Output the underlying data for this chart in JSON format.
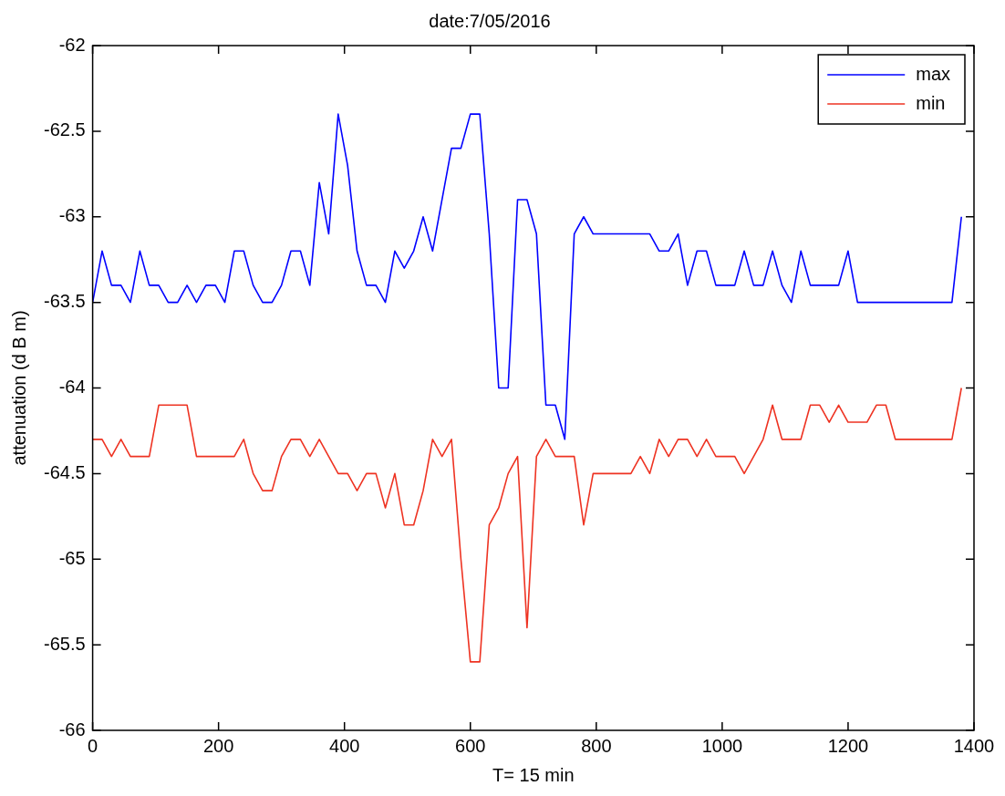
{
  "chart_data": {
    "type": "line",
    "title": "date:7/05/2016",
    "xlabel": "T= 15 min",
    "ylabel": "attenuation (d B m)",
    "x": [
      0,
      15,
      30,
      45,
      60,
      75,
      90,
      105,
      120,
      135,
      150,
      165,
      180,
      195,
      210,
      225,
      240,
      255,
      270,
      285,
      300,
      315,
      330,
      345,
      360,
      375,
      390,
      405,
      420,
      435,
      450,
      465,
      480,
      495,
      510,
      525,
      540,
      555,
      570,
      585,
      600,
      615,
      630,
      645,
      660,
      675,
      690,
      705,
      720,
      735,
      750,
      765,
      780,
      795,
      810,
      825,
      840,
      855,
      870,
      885,
      900,
      915,
      930,
      945,
      960,
      975,
      990,
      1005,
      1020,
      1035,
      1050,
      1065,
      1080,
      1095,
      1110,
      1125,
      1140,
      1155,
      1170,
      1185,
      1200,
      1215,
      1230,
      1245,
      1260,
      1275,
      1290,
      1305,
      1320,
      1335,
      1350,
      1365,
      1380
    ],
    "series": [
      {
        "name": "max",
        "color": "#0000ff",
        "values": [
          -63.5,
          -63.2,
          -63.4,
          -63.4,
          -63.5,
          -63.2,
          -63.4,
          -63.4,
          -63.5,
          -63.5,
          -63.4,
          -63.5,
          -63.4,
          -63.4,
          -63.5,
          -63.2,
          -63.2,
          -63.4,
          -63.5,
          -63.5,
          -63.4,
          -63.2,
          -63.2,
          -63.4,
          -62.8,
          -63.1,
          -62.4,
          -62.7,
          -63.2,
          -63.4,
          -63.4,
          -63.5,
          -63.2,
          -63.3,
          -63.2,
          -63.0,
          -63.2,
          -62.9,
          -62.6,
          -62.6,
          -62.4,
          -62.4,
          -63.1,
          -64.0,
          -64.0,
          -62.9,
          -62.9,
          -63.1,
          -64.1,
          -64.1,
          -64.3,
          -63.1,
          -63.0,
          -63.1,
          -63.1,
          -63.1,
          -63.1,
          -63.1,
          -63.1,
          -63.1,
          -63.2,
          -63.2,
          -63.1,
          -63.4,
          -63.2,
          -63.2,
          -63.4,
          -63.4,
          -63.4,
          -63.2,
          -63.4,
          -63.4,
          -63.2,
          -63.4,
          -63.5,
          -63.2,
          -63.4,
          -63.4,
          -63.4,
          -63.4,
          -63.2,
          -63.5,
          -63.5,
          -63.5,
          -63.5,
          -63.5,
          -63.5,
          -63.5,
          -63.5,
          -63.5,
          -63.5,
          -63.5,
          -63.0
        ]
      },
      {
        "name": "min",
        "color": "#ee3322",
        "values": [
          -64.3,
          -64.3,
          -64.4,
          -64.3,
          -64.4,
          -64.4,
          -64.4,
          -64.1,
          -64.1,
          -64.1,
          -64.1,
          -64.4,
          -64.4,
          -64.4,
          -64.4,
          -64.4,
          -64.3,
          -64.5,
          -64.6,
          -64.6,
          -64.4,
          -64.3,
          -64.3,
          -64.4,
          -64.3,
          -64.4,
          -64.5,
          -64.5,
          -64.6,
          -64.5,
          -64.5,
          -64.7,
          -64.5,
          -64.8,
          -64.8,
          -64.6,
          -64.3,
          -64.4,
          -64.3,
          -65.0,
          -65.6,
          -65.6,
          -64.8,
          -64.7,
          -64.5,
          -64.4,
          -65.4,
          -64.4,
          -64.3,
          -64.4,
          -64.4,
          -64.4,
          -64.8,
          -64.5,
          -64.5,
          -64.5,
          -64.5,
          -64.5,
          -64.4,
          -64.5,
          -64.3,
          -64.4,
          -64.3,
          -64.3,
          -64.4,
          -64.3,
          -64.4,
          -64.4,
          -64.4,
          -64.5,
          -64.4,
          -64.3,
          -64.1,
          -64.3,
          -64.3,
          -64.3,
          -64.1,
          -64.1,
          -64.2,
          -64.1,
          -64.2,
          -64.2,
          -64.2,
          -64.1,
          -64.1,
          -64.3,
          -64.3,
          -64.3,
          -64.3,
          -64.3,
          -64.3,
          -64.3,
          -64.0
        ]
      }
    ],
    "xlim": [
      0,
      1400
    ],
    "xticks": [
      0,
      200,
      400,
      600,
      800,
      1000,
      1200,
      1400
    ],
    "ylim": [
      -66,
      -62
    ],
    "yticks": [
      -66,
      -65.5,
      -65,
      -64.5,
      -64,
      -63.5,
      -63,
      -62.5,
      -62
    ],
    "grid": false,
    "legend": "top right",
    "marker": "none",
    "line_style": "solid"
  }
}
